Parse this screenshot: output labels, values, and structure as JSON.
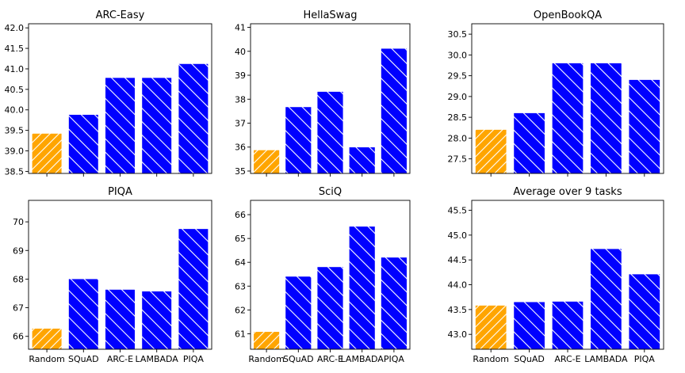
{
  "colors": {
    "baseline": "#FFA500",
    "trained": "#0000FF",
    "hatch": "#FFFFFF",
    "axes": "#000000",
    "background": "#FFFFFF"
  },
  "chart_data": [
    {
      "type": "bar",
      "title": "ARC-Easy",
      "categories": [
        "Random",
        "SQuAD",
        "ARC-E",
        "LAMBADA",
        "PIQA"
      ],
      "values": [
        39.42,
        39.88,
        40.78,
        40.78,
        41.12
      ],
      "ylim": [
        38.45,
        42.1
      ],
      "yticks": [
        38.5,
        39.0,
        39.5,
        40.0,
        40.5,
        41.0,
        41.5,
        42.0
      ],
      "ytick_labels": [
        "38.5",
        "39.0",
        "39.5",
        "40.0",
        "40.5",
        "41.0",
        "41.5",
        "42.0"
      ],
      "show_xlabels": false
    },
    {
      "type": "bar",
      "title": "HellaSwag",
      "categories": [
        "Random",
        "SQuAD",
        "ARC-E",
        "LAMBADA",
        "PIQA"
      ],
      "values": [
        35.87,
        37.67,
        38.31,
        35.99,
        40.11
      ],
      "ylim": [
        34.9,
        41.15
      ],
      "yticks": [
        35,
        36,
        37,
        38,
        39,
        40,
        41
      ],
      "ytick_labels": [
        "35",
        "36",
        "37",
        "38",
        "39",
        "40",
        "41"
      ],
      "show_xlabels": false
    },
    {
      "type": "bar",
      "title": "OpenBookQA",
      "categories": [
        "Random",
        "SQuAD",
        "ARC-E",
        "LAMBADA",
        "PIQA"
      ],
      "values": [
        28.2,
        28.6,
        29.8,
        29.8,
        29.4
      ],
      "ylim": [
        27.15,
        30.75
      ],
      "yticks": [
        27.5,
        28.0,
        28.5,
        29.0,
        29.5,
        30.0,
        30.5
      ],
      "ytick_labels": [
        "27.5",
        "28.0",
        "28.5",
        "29.0",
        "29.5",
        "30.0",
        "30.5"
      ],
      "show_xlabels": false
    },
    {
      "type": "bar",
      "title": "PIQA",
      "categories": [
        "Random",
        "SQuAD",
        "ARC-E",
        "LAMBADA",
        "PIQA"
      ],
      "values": [
        66.27,
        68.0,
        67.63,
        67.57,
        69.75
      ],
      "ylim": [
        65.55,
        70.75
      ],
      "yticks": [
        66,
        67,
        68,
        69,
        70
      ],
      "ytick_labels": [
        "66",
        "67",
        "68",
        "69",
        "70"
      ],
      "show_xlabels": true
    },
    {
      "type": "bar",
      "title": "SciQ",
      "categories": [
        "Random",
        "SQuAD",
        "ARC-E",
        "LAMBADA",
        "PIQA"
      ],
      "values": [
        61.08,
        63.4,
        63.8,
        65.5,
        64.2
      ],
      "ylim": [
        60.35,
        66.6
      ],
      "yticks": [
        61,
        62,
        63,
        64,
        65,
        66
      ],
      "ytick_labels": [
        "61",
        "62",
        "63",
        "64",
        "65",
        "66"
      ],
      "show_xlabels": true
    },
    {
      "type": "bar",
      "title": "Average over 9 tasks",
      "categories": [
        "Random",
        "SQuAD",
        "ARC-E",
        "LAMBADA",
        "PIQA"
      ],
      "values": [
        43.58,
        43.65,
        43.66,
        44.72,
        44.21
      ],
      "ylim": [
        42.7,
        45.7
      ],
      "yticks": [
        43.0,
        43.5,
        44.0,
        44.5,
        45.0,
        45.5
      ],
      "ytick_labels": [
        "43.0",
        "43.5",
        "44.0",
        "44.5",
        "45.0",
        "45.5"
      ],
      "show_xlabels": true
    }
  ]
}
